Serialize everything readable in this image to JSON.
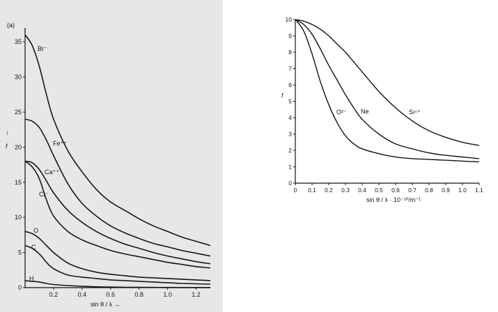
{
  "chart_data": [
    {
      "type": "line",
      "panel_label": "(a)",
      "xlabel": "sin θ / λ →",
      "ylabel": "f",
      "xlim": [
        0,
        1.3
      ],
      "ylim": [
        0,
        37
      ],
      "xticks": [
        0.2,
        0.4,
        0.6,
        0.8,
        1.0,
        1.2
      ],
      "yticks": [
        0,
        5,
        10,
        15,
        20,
        25,
        30,
        35
      ],
      "grid": false,
      "series": [
        {
          "name": "Br⁻",
          "label": "Br⁻",
          "x": [
            0,
            0.05,
            0.1,
            0.15,
            0.2,
            0.3,
            0.4,
            0.5,
            0.6,
            0.7,
            0.8,
            0.9,
            1.0,
            1.1,
            1.2,
            1.3
          ],
          "y": [
            36,
            34.5,
            31.5,
            27.5,
            24,
            19.5,
            16.5,
            14,
            12.2,
            11,
            9.8,
            8.8,
            8,
            7.2,
            6.6,
            6
          ]
        },
        {
          "name": "Fe⁺⁺",
          "label": "Fe⁺⁺",
          "x": [
            0,
            0.05,
            0.1,
            0.15,
            0.2,
            0.3,
            0.4,
            0.5,
            0.6,
            0.7,
            0.8,
            0.9,
            1.0,
            1.1,
            1.2,
            1.3
          ],
          "y": [
            24,
            23.7,
            22.8,
            21,
            18.8,
            14.8,
            12,
            10.2,
            8.8,
            7.8,
            7,
            6.3,
            5.8,
            5.3,
            4.9,
            4.5
          ]
        },
        {
          "name": "Ca⁺⁺",
          "label": "Ca⁺⁺",
          "x": [
            0,
            0.05,
            0.1,
            0.15,
            0.2,
            0.3,
            0.4,
            0.5,
            0.6,
            0.7,
            0.8,
            0.9,
            1.0,
            1.1,
            1.2,
            1.3
          ],
          "y": [
            18,
            17.8,
            16.8,
            15.2,
            13.5,
            11,
            9.3,
            8,
            7,
            6.2,
            5.6,
            5,
            4.5,
            4.1,
            3.7,
            3.4
          ]
        },
        {
          "name": "Cl⁻",
          "label": "Cl⁻",
          "x": [
            0,
            0.05,
            0.1,
            0.15,
            0.2,
            0.3,
            0.4,
            0.5,
            0.6,
            0.7,
            0.8,
            0.9,
            1.0,
            1.1,
            1.2,
            1.3
          ],
          "y": [
            18,
            17.2,
            15.5,
            12.5,
            10.2,
            8,
            6.8,
            6,
            5.3,
            4.8,
            4.4,
            4,
            3.6,
            3.3,
            3,
            2.8
          ]
        },
        {
          "name": "O",
          "label": "O",
          "x": [
            0,
            0.05,
            0.1,
            0.15,
            0.2,
            0.3,
            0.4,
            0.5,
            0.6,
            0.7,
            0.8,
            0.9,
            1.0,
            1.1,
            1.2,
            1.3
          ],
          "y": [
            8,
            7.7,
            7,
            6,
            5,
            3.5,
            2.7,
            2.2,
            1.9,
            1.7,
            1.5,
            1.4,
            1.3,
            1.2,
            1.1,
            1.0
          ]
        },
        {
          "name": "C",
          "label": "C",
          "x": [
            0,
            0.05,
            0.1,
            0.15,
            0.2,
            0.3,
            0.4,
            0.5,
            0.6,
            0.7,
            0.8,
            0.9,
            1.0,
            1.1,
            1.2,
            1.3
          ],
          "y": [
            6,
            5.6,
            4.8,
            3.6,
            2.7,
            1.8,
            1.5,
            1.3,
            1.1,
            1.0,
            0.9,
            0.8,
            0.7,
            0.6,
            0.55,
            0.5
          ]
        },
        {
          "name": "H",
          "label": "H",
          "x": [
            0,
            0.05,
            0.1,
            0.15,
            0.2,
            0.3,
            0.4,
            0.5,
            0.6,
            0.7,
            0.8,
            0.9,
            1.0,
            1.1,
            1.2,
            1.3
          ],
          "y": [
            1,
            0.9,
            0.8,
            0.6,
            0.45,
            0.3,
            0.2,
            0.12,
            0.08,
            0.05,
            0.04,
            0.03,
            0.02,
            0.01,
            0.01,
            0.01
          ]
        }
      ]
    },
    {
      "type": "line",
      "xlabel": "sin θ / λ · 10⁻¹⁰/m⁻¹",
      "ylabel": "f",
      "xlim": [
        0,
        1.1
      ],
      "ylim": [
        0,
        10
      ],
      "xticks": [
        0,
        0.1,
        0.2,
        0.3,
        0.4,
        0.5,
        0.6,
        0.7,
        0.8,
        0.9,
        1.0,
        1.1
      ],
      "yticks": [
        0,
        1,
        2,
        3,
        4,
        5,
        6,
        7,
        8,
        9,
        10
      ],
      "grid": false,
      "series": [
        {
          "name": "O²⁻",
          "label": "O²⁻",
          "x": [
            0,
            0.05,
            0.1,
            0.15,
            0.2,
            0.25,
            0.3,
            0.35,
            0.4,
            0.5,
            0.6,
            0.7,
            0.8,
            0.9,
            1.0,
            1.1
          ],
          "y": [
            10,
            9.3,
            7.9,
            6.2,
            4.8,
            3.7,
            2.9,
            2.4,
            2.1,
            1.8,
            1.6,
            1.5,
            1.45,
            1.4,
            1.35,
            1.3
          ]
        },
        {
          "name": "Ne",
          "label": "Ne",
          "x": [
            0,
            0.05,
            0.1,
            0.15,
            0.2,
            0.25,
            0.3,
            0.35,
            0.4,
            0.5,
            0.6,
            0.7,
            0.8,
            0.9,
            1.0,
            1.1
          ],
          "y": [
            10,
            9.7,
            9.1,
            8.2,
            7.2,
            6.3,
            5.4,
            4.6,
            3.9,
            3.0,
            2.4,
            2.1,
            1.85,
            1.7,
            1.6,
            1.5
          ]
        },
        {
          "name": "Si⁴⁺",
          "label": "Si⁴⁺",
          "x": [
            0,
            0.05,
            0.1,
            0.15,
            0.2,
            0.25,
            0.3,
            0.35,
            0.4,
            0.5,
            0.6,
            0.7,
            0.8,
            0.9,
            1.0,
            1.1
          ],
          "y": [
            10,
            9.9,
            9.7,
            9.4,
            9.0,
            8.5,
            8.0,
            7.4,
            6.8,
            5.6,
            4.6,
            3.8,
            3.2,
            2.8,
            2.5,
            2.3
          ]
        }
      ]
    }
  ]
}
